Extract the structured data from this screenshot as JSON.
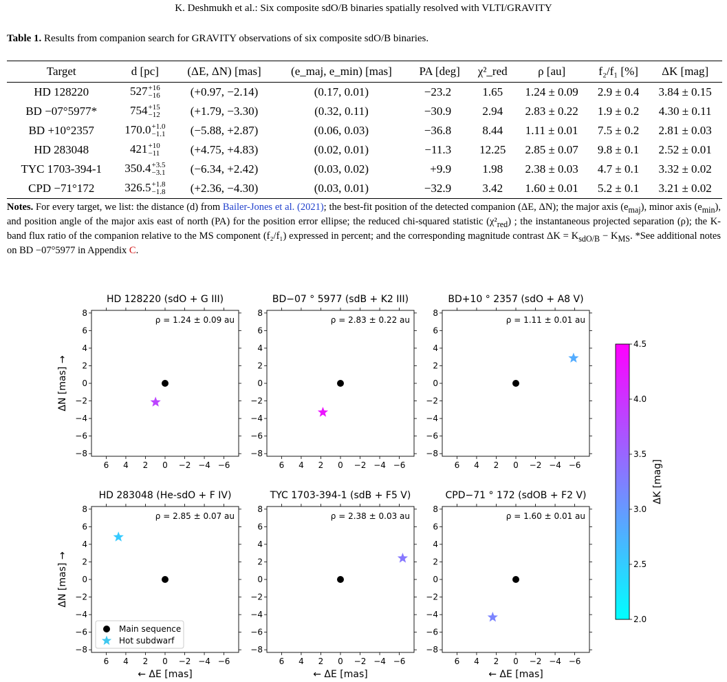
{
  "running_head": "K. Deshmukh  et al.: Six composite sdO/B binaries spatially resolved with VLTI/GRAVITY",
  "table": {
    "caption_label": "Table 1.",
    "caption_text": " Results from companion search for GRAVITY observations of six composite sdO/B binaries.",
    "headers": [
      "Target",
      "d [pc]",
      "(ΔE, ΔN) [mas]",
      "(e_maj, e_min) [mas]",
      "PA [deg]",
      "χ²_red",
      "ρ [au]",
      "f₂/f₁ [%]",
      "ΔK [mag]"
    ],
    "rows": [
      {
        "target": "HD 128220",
        "d": "527",
        "d_up": "+16",
        "d_lo": "−16",
        "offset": "(+0.97, −2.14)",
        "err": "(0.17, 0.01)",
        "pa": "−23.2",
        "chi2": "1.65",
        "rho": "1.24 ± 0.09",
        "flux": "2.9 ± 0.4",
        "dk": "3.84 ± 0.15"
      },
      {
        "target": "BD −07°5977*",
        "d": "754",
        "d_up": "+15",
        "d_lo": "−12",
        "offset": "(+1.79, −3.30)",
        "err": "(0.32, 0.11)",
        "pa": "−30.9",
        "chi2": "2.94",
        "rho": "2.83 ± 0.22",
        "flux": "1.9 ± 0.2",
        "dk": "4.30 ± 0.11"
      },
      {
        "target": "BD +10°2357",
        "d": "170.0",
        "d_up": "+1.0",
        "d_lo": "−1.1",
        "offset": "(−5.88, +2.87)",
        "err": "(0.06, 0.03)",
        "pa": "−36.8",
        "chi2": "8.44",
        "rho": "1.11 ± 0.01",
        "flux": "7.5 ± 0.2",
        "dk": "2.81 ± 0.03"
      },
      {
        "target": "HD 283048",
        "d": "421",
        "d_up": "+10",
        "d_lo": "−11",
        "offset": "(+4.75, +4.83)",
        "err": "(0.02, 0.01)",
        "pa": "−11.3",
        "chi2": "12.25",
        "rho": "2.85 ± 0.07",
        "flux": "9.8 ± 0.1",
        "dk": "2.52 ± 0.01"
      },
      {
        "target": "TYC 1703-394-1",
        "d": "350.4",
        "d_up": "+3.5",
        "d_lo": "−3.1",
        "offset": "(−6.34, +2.42)",
        "err": "(0.03, 0.02)",
        "pa": "+9.9",
        "chi2": "1.98",
        "rho": "2.38 ± 0.03",
        "flux": "4.7 ± 0.1",
        "dk": "3.32 ± 0.02"
      },
      {
        "target": "CPD −71°172",
        "d": "326.5",
        "d_up": "+1.8",
        "d_lo": "−1.8",
        "offset": "(+2.36, −4.30)",
        "err": "(0.03, 0.01)",
        "pa": "−32.9",
        "chi2": "3.42",
        "rho": "1.60 ± 0.01",
        "flux": "5.2 ± 0.1",
        "dk": "3.21 ± 0.02"
      }
    ]
  },
  "notes": {
    "label": "Notes.",
    "part1": " For every target, we list: the distance (d) from ",
    "citation": "Bailer-Jones et al. (2021)",
    "part2": "; the best-fit position of the detected companion (ΔE, ΔN); the major axis (e",
    "part3": "), minor axis (e",
    "part4": "), and position angle of the major axis east of north (PA) for the position error ellipse; the reduced chi-squared statistic (χ²",
    "part5": ") ; the instantaneous projected separation (ρ); the K-band flux ratio of the companion relative to the MS component (f₂/f₁) expressed in percent; and the corresponding magnitude contrast ΔK = K",
    "part6": " − K",
    "part7": ". *See additional notes on BD −07°5977 in Appendix ",
    "appendix": "C",
    "part8": ".",
    "sub_maj": "maj",
    "sub_min": "min",
    "sub_red": "red",
    "sub_sdob": "sdO/B",
    "sub_ms": "MS"
  },
  "figure": {
    "xlabel": "← ΔE [mas]",
    "ylabel": "ΔN [mas] →",
    "colorbar_label": "ΔK [mag]",
    "legend": {
      "main_sequence": "Main sequence",
      "hot_subdwarf": "Hot subdwarf"
    },
    "colors": {
      "main_sequence": "#000000",
      "cmap_low": "#00ffff",
      "cmap_high": "#ff00ff"
    }
  },
  "chart_data": [
    {
      "type": "scatter",
      "title": "HD 128220 (sdO + G III)",
      "annotation": "ρ = 1.24 ± 0.09 au",
      "xlabel": "",
      "ylabel": "ΔN [mas] →",
      "xlim": [
        7.5,
        -7.5
      ],
      "ylim": [
        -8.3,
        8.3
      ],
      "xticks": [
        6,
        4,
        2,
        0,
        -2,
        -4,
        -6
      ],
      "yticks": [
        8,
        6,
        4,
        2,
        0,
        -2,
        -4,
        -6,
        -8
      ],
      "main_sequence": [
        0,
        0
      ],
      "hot_subdwarf": [
        0.97,
        -2.14
      ],
      "delta_k": 3.84
    },
    {
      "type": "scatter",
      "title": "BD−07 ° 5977 (sdB + K2 III)",
      "annotation": "ρ = 2.83 ± 0.22 au",
      "xlabel": "",
      "ylabel": "",
      "xlim": [
        7.5,
        -7.5
      ],
      "ylim": [
        -8.3,
        8.3
      ],
      "xticks": [
        6,
        4,
        2,
        0,
        -2,
        -4,
        -6
      ],
      "yticks": [
        8,
        6,
        4,
        2,
        0,
        -2,
        -4,
        -6,
        -8
      ],
      "main_sequence": [
        0,
        0
      ],
      "hot_subdwarf": [
        1.79,
        -3.3
      ],
      "delta_k": 4.3
    },
    {
      "type": "scatter",
      "title": "BD+10 ° 2357 (sdO + A8 V)",
      "annotation": "ρ = 1.11 ± 0.01 au",
      "xlabel": "",
      "ylabel": "",
      "xlim": [
        7.5,
        -7.5
      ],
      "ylim": [
        -8.3,
        8.3
      ],
      "xticks": [
        6,
        4,
        2,
        0,
        -2,
        -4,
        -6
      ],
      "yticks": [
        8,
        6,
        4,
        2,
        0,
        -2,
        -4,
        -6,
        -8
      ],
      "main_sequence": [
        0,
        0
      ],
      "hot_subdwarf": [
        -5.88,
        2.87
      ],
      "delta_k": 2.81
    },
    {
      "type": "scatter",
      "title": "HD 283048 (He-sdO + F IV)",
      "annotation": "ρ = 2.85 ± 0.07 au",
      "xlabel": "← ΔE [mas]",
      "ylabel": "ΔN [mas] →",
      "xlim": [
        7.5,
        -7.5
      ],
      "ylim": [
        -8.3,
        8.3
      ],
      "xticks": [
        6,
        4,
        2,
        0,
        -2,
        -4,
        -6
      ],
      "yticks": [
        8,
        6,
        4,
        2,
        0,
        -2,
        -4,
        -6,
        -8
      ],
      "main_sequence": [
        0,
        0
      ],
      "hot_subdwarf": [
        4.75,
        4.83
      ],
      "delta_k": 2.52,
      "legend": "lower-left"
    },
    {
      "type": "scatter",
      "title": "TYC 1703-394-1 (sdB + F5 V)",
      "annotation": "ρ = 2.38 ± 0.03 au",
      "xlabel": "← ΔE [mas]",
      "ylabel": "",
      "xlim": [
        7.5,
        -7.5
      ],
      "ylim": [
        -8.3,
        8.3
      ],
      "xticks": [
        6,
        4,
        2,
        0,
        -2,
        -4,
        -6
      ],
      "yticks": [
        8,
        6,
        4,
        2,
        0,
        -2,
        -4,
        -6,
        -8
      ],
      "main_sequence": [
        0,
        0
      ],
      "hot_subdwarf": [
        -6.34,
        2.42
      ],
      "delta_k": 3.32
    },
    {
      "type": "scatter",
      "title": "CPD−71 ° 172 (sdOB + F2 V)",
      "annotation": "ρ = 1.60 ± 0.01 au",
      "xlabel": "← ΔE [mas]",
      "ylabel": "",
      "xlim": [
        7.5,
        -7.5
      ],
      "ylim": [
        -8.3,
        8.3
      ],
      "xticks": [
        6,
        4,
        2,
        0,
        -2,
        -4,
        -6
      ],
      "yticks": [
        8,
        6,
        4,
        2,
        0,
        -2,
        -4,
        -6,
        -8
      ],
      "main_sequence": [
        0,
        0
      ],
      "hot_subdwarf": [
        2.36,
        -4.3
      ],
      "delta_k": 3.21
    }
  ],
  "colorbar": {
    "range": [
      2.0,
      4.5
    ],
    "ticks": [
      "4.5",
      "4.0",
      "3.5",
      "3.0",
      "2.5",
      "2.0"
    ],
    "tick_values": [
      4.5,
      4.0,
      3.5,
      3.0,
      2.5,
      2.0
    ]
  }
}
